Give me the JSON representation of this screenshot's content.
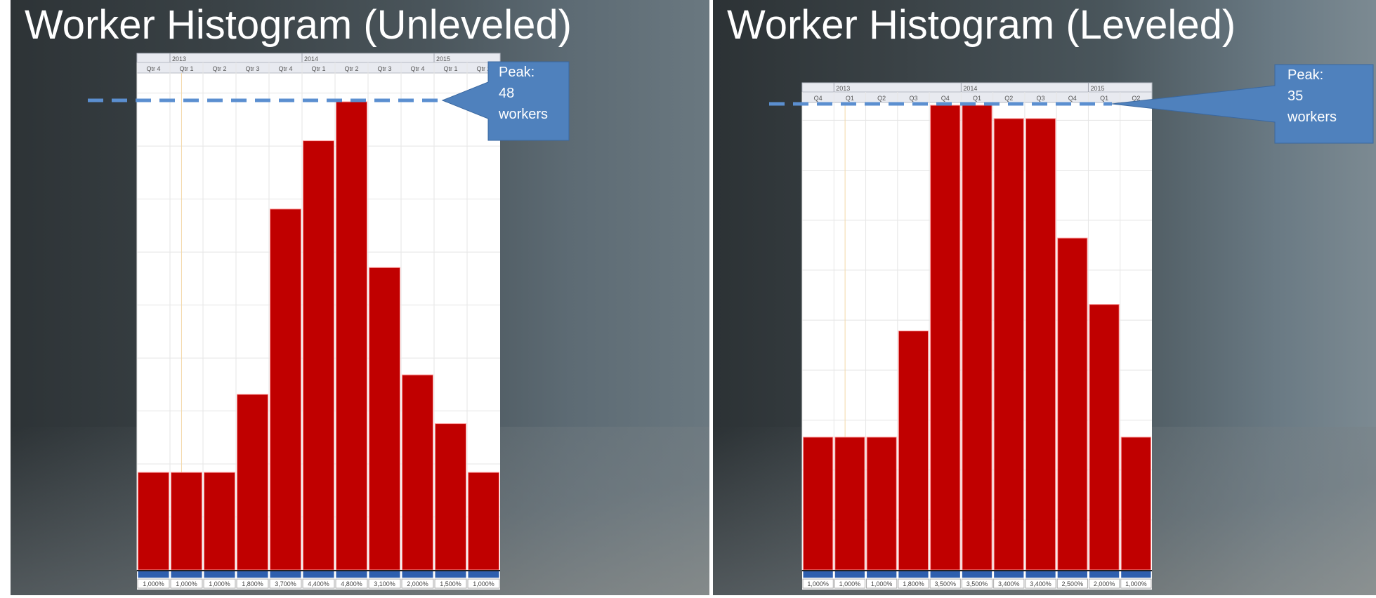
{
  "chart_data": [
    {
      "type": "bar",
      "title": "Worker Histogram (Unleveled)",
      "years": [
        {
          "label": "2013",
          "start": 1
        },
        {
          "label": "2014",
          "start": 5
        },
        {
          "label": "2015",
          "start": 9
        }
      ],
      "categories": [
        "Qtr 4",
        "Qtr 1",
        "Qtr 2",
        "Qtr 3",
        "Qtr 4",
        "Qtr 1",
        "Qtr 2",
        "Qtr 3",
        "Qtr 4",
        "Qtr 1",
        "Qtr 2"
      ],
      "values": [
        1000,
        1000,
        1000,
        1800,
        3700,
        4400,
        4800,
        3100,
        2000,
        1500,
        1000
      ],
      "value_labels": [
        "1,000%",
        "1,000%",
        "1,000%",
        "1,800%",
        "3,700%",
        "4,400%",
        "4,800%",
        "3,100%",
        "2,000%",
        "1,500%",
        "1,000%"
      ],
      "ylim": [
        0,
        4800
      ],
      "grid": true,
      "bar_color": "#c00000",
      "peak": {
        "line1": "Peak:",
        "line2": "48",
        "line3": "workers"
      }
    },
    {
      "type": "bar",
      "title": "Worker Histogram (Leveled)",
      "years": [
        {
          "label": "2013",
          "start": 1
        },
        {
          "label": "2014",
          "start": 5
        },
        {
          "label": "2015",
          "start": 9
        }
      ],
      "categories": [
        "Q4",
        "Q1",
        "Q2",
        "Q3",
        "Q4",
        "Q1",
        "Q2",
        "Q3",
        "Q4",
        "Q1",
        "Q2"
      ],
      "values": [
        1000,
        1000,
        1000,
        1800,
        3500,
        3500,
        3400,
        3400,
        2500,
        2000,
        1000
      ],
      "value_labels": [
        "1,000%",
        "1,000%",
        "1,000%",
        "1,800%",
        "3,500%",
        "3,500%",
        "3,400%",
        "3,400%",
        "2,500%",
        "2,000%",
        "1,000%"
      ],
      "ylim": [
        0,
        3500
      ],
      "grid": true,
      "bar_color": "#c00000",
      "peak": {
        "line1": "Peak:",
        "line2": "35",
        "line3": "workers"
      }
    }
  ],
  "colors": {
    "callout": "#4f81bd",
    "dash": "#5b8fd0",
    "baseline": "#2e5fae"
  }
}
